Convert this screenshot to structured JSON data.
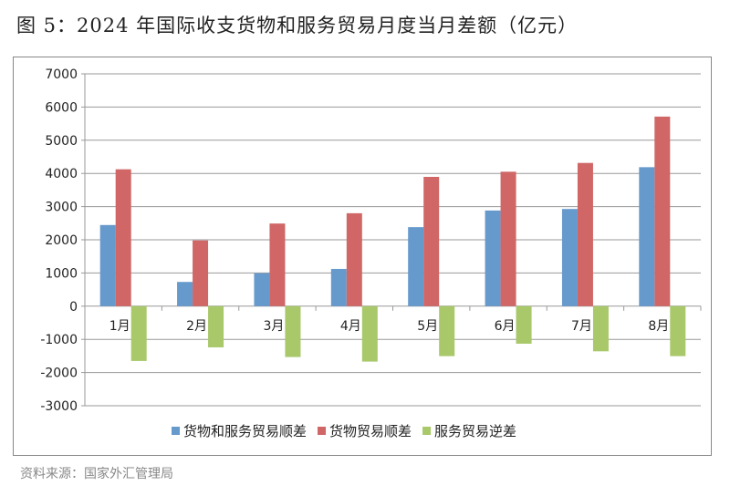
{
  "title": "图 5：2024 年国际收支货物和服务贸易月度当月差额（亿元）",
  "source": "资料来源：国家外汇管理局",
  "chart_data": {
    "type": "bar",
    "title": "图 5：2024 年国际收支货物和服务贸易月度当月差额（亿元）",
    "categories": [
      "1月",
      "2月",
      "3月",
      "4月",
      "5月",
      "6月",
      "7月",
      "8月"
    ],
    "series": [
      {
        "name": "货物和服务贸易顺差",
        "color": "#6699cc",
        "values": [
          2445,
          730,
          995,
          1122,
          2381,
          2883,
          2929,
          4188
        ]
      },
      {
        "name": "货物贸易顺差",
        "color": "#d06666",
        "values": [
          4124,
          1980,
          2490,
          2800,
          3896,
          4051,
          4316,
          5712
        ]
      },
      {
        "name": "服务贸易逆差",
        "color": "#a8c86a",
        "values": [
          -1651,
          -1241,
          -1533,
          -1670,
          -1505,
          -1131,
          -1360,
          -1505
        ]
      }
    ],
    "ylim": [
      -3000,
      7000
    ],
    "yticks": [
      "7000",
      "6000",
      "5000",
      "4000",
      "3000",
      "2000",
      "1000",
      "0",
      "-1000",
      "-2000",
      "-3000"
    ],
    "grid": true,
    "legend": "bottom",
    "xlabel": "",
    "ylabel": ""
  }
}
